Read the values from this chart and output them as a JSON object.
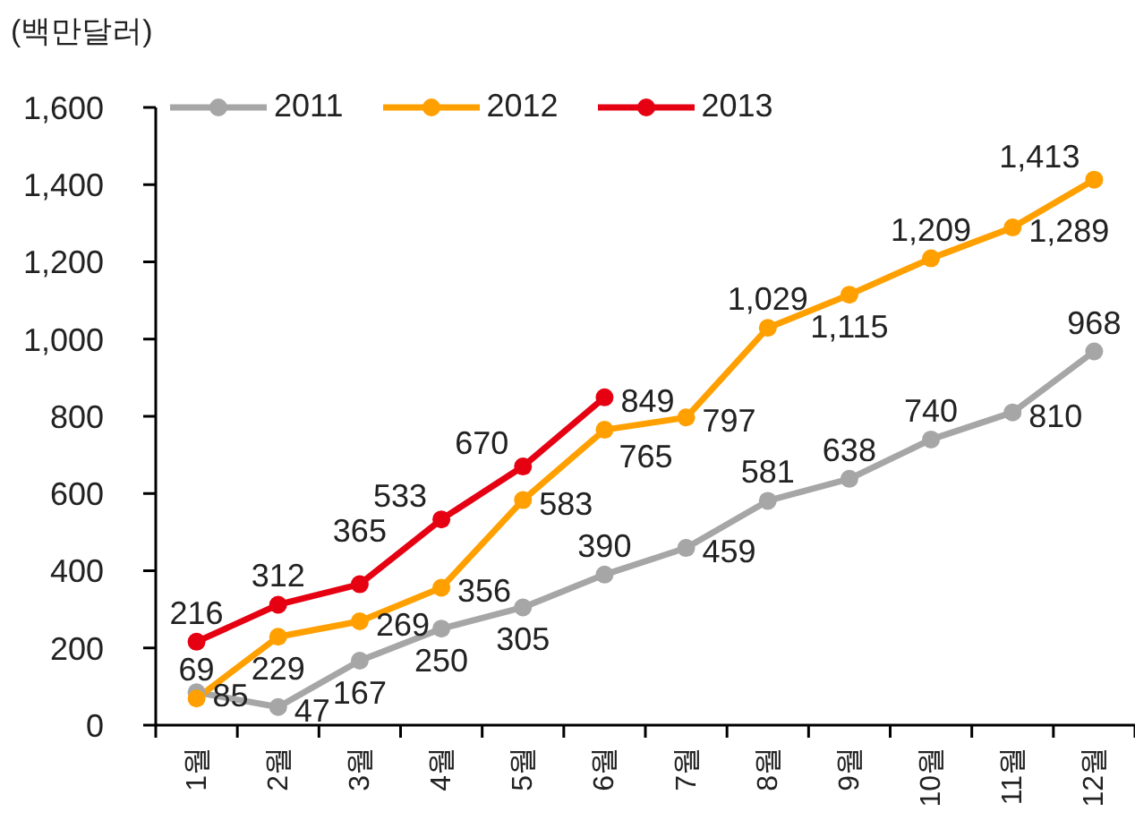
{
  "chart_data": {
    "type": "line",
    "ylabel": "(백만달러)",
    "categories": [
      "1월",
      "2월",
      "3월",
      "4월",
      "5월",
      "6월",
      "7월",
      "8월",
      "9월",
      "10월",
      "11월",
      "12월"
    ],
    "series": [
      {
        "name": "2011",
        "color": "#a6a6a6",
        "values": [
          85,
          47,
          167,
          250,
          305,
          390,
          459,
          581,
          638,
          740,
          810,
          968
        ],
        "value_labels": [
          "85",
          "47",
          "167",
          "250",
          "305",
          "390",
          "459",
          "581",
          "638",
          "740",
          "810",
          "968"
        ]
      },
      {
        "name": "2012",
        "color": "#ffa000",
        "values": [
          69,
          229,
          269,
          356,
          583,
          765,
          797,
          1029,
          1115,
          1209,
          1289,
          1413
        ],
        "value_labels": [
          "69",
          "229",
          "269",
          "356",
          "583",
          "765",
          "797",
          "1,029",
          "1,115",
          "1,209",
          "1,289",
          "1,413"
        ]
      },
      {
        "name": "2013",
        "color": "#e50012",
        "values": [
          216,
          312,
          365,
          533,
          670,
          849,
          null,
          null,
          null,
          null,
          null,
          null
        ],
        "value_labels": [
          "216",
          "312",
          "365",
          "533",
          "670",
          "849",
          null,
          null,
          null,
          null,
          null,
          null
        ]
      }
    ],
    "ylim": [
      0,
      1600
    ],
    "yticks": [
      0,
      200,
      400,
      600,
      800,
      {
        "value": 1000,
        "label": "1,000"
      },
      {
        "value": 1200,
        "label": "1,200"
      },
      {
        "value": 1400,
        "label": "1,400"
      },
      {
        "value": 1600,
        "label": "1,600"
      }
    ],
    "legend": "top left",
    "marker": "circle"
  }
}
